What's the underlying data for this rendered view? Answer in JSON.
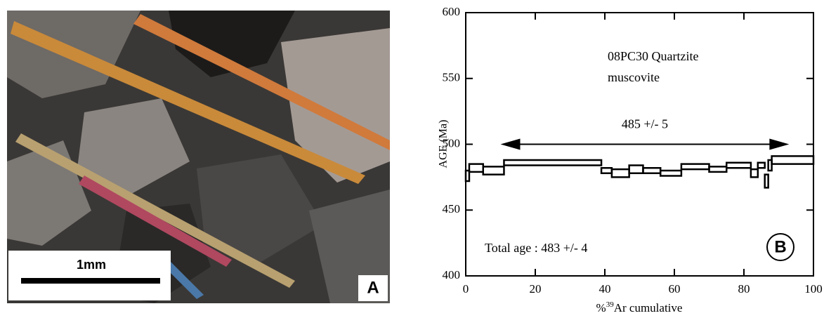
{
  "chart_data": {
    "type": "age_spectrum",
    "panel_a": {
      "scale_label": "1mm",
      "label": "A"
    },
    "panel_label": "B",
    "sample": "08PC30 Quartzite",
    "mineral": "muscovite",
    "plateau_label": "485 +/- 5",
    "plateau_range": [
      10,
      93
    ],
    "plateau_age": 500,
    "total_age_label": "Total age : 483 +/- 4",
    "y_label": "AGE (Ma)",
    "x_label": {
      "prefix": "%",
      "sup": "39",
      "text": "Ar cumulative"
    },
    "xlim": [
      0,
      100
    ],
    "ylim": [
      400,
      600
    ],
    "xticks": [
      0,
      20,
      40,
      60,
      80,
      100
    ],
    "yticks": [
      400,
      450,
      500,
      550,
      600
    ],
    "steps": {
      "edges": [
        0,
        1,
        5,
        11,
        39,
        42,
        47,
        51,
        56,
        62,
        70,
        75,
        82,
        84,
        86,
        87,
        88,
        100
      ],
      "ages": [
        476,
        482,
        480,
        486,
        480,
        478,
        481,
        480,
        478,
        483,
        481,
        484,
        478,
        484,
        472,
        484,
        488
      ],
      "errors": [
        4,
        3,
        3,
        2,
        2,
        3,
        3,
        2,
        2,
        2,
        2,
        2,
        3,
        2,
        5,
        4,
        3
      ]
    }
  }
}
